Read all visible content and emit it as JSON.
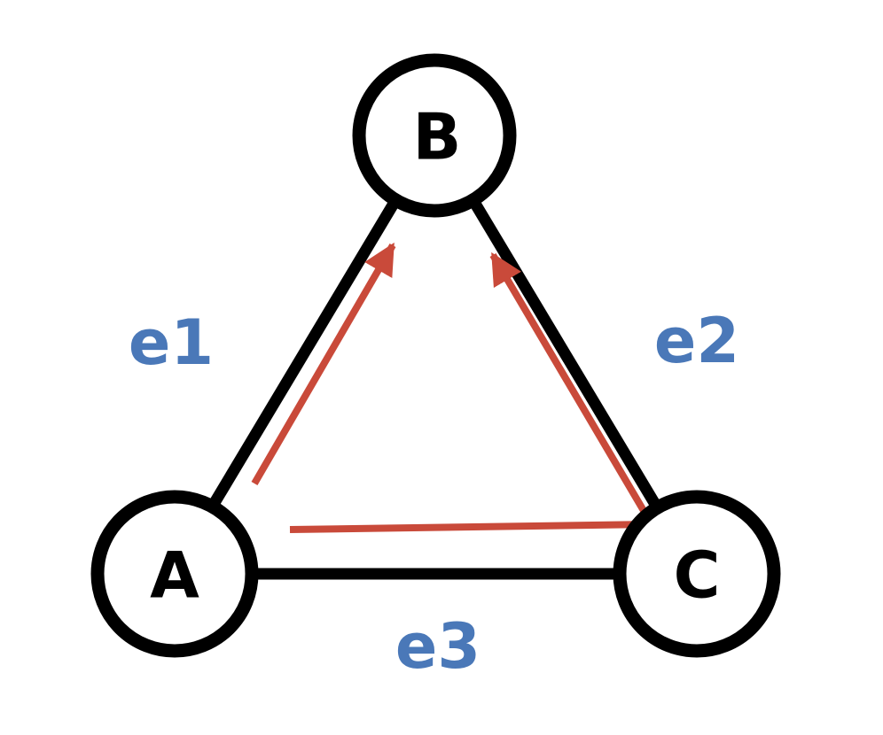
{
  "nodes": [
    {
      "id": "A",
      "label": "A"
    },
    {
      "id": "B",
      "label": "B"
    },
    {
      "id": "C",
      "label": "C"
    }
  ],
  "edges": [
    {
      "id": "e1",
      "label": "e1",
      "from": "A",
      "to": "B"
    },
    {
      "id": "e2",
      "label": "e2",
      "from": "C",
      "to": "B"
    },
    {
      "id": "e3",
      "label": "e3",
      "from": "A",
      "to": "C"
    }
  ],
  "paths": [
    {
      "id": "path-a-to-b",
      "from": "A",
      "to": "B",
      "directed": true
    },
    {
      "id": "path-a-to-c-to-b",
      "from": "A",
      "via": "C",
      "to": "B",
      "directed": true
    }
  ],
  "colors": {
    "node_stroke": "#000000",
    "node_fill": "#ffffff",
    "edge_stroke": "#000000",
    "edge_label": "#4a78b8",
    "path_arrow": "#c94a3a"
  }
}
